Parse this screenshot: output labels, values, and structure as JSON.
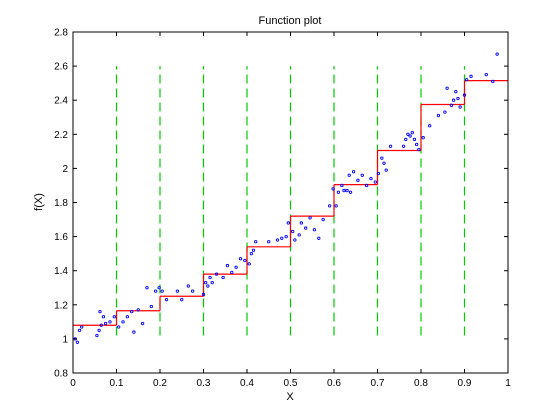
{
  "chart_data": {
    "type": "scatter",
    "title": "Function plot",
    "xlabel": "X",
    "ylabel": "f(X)",
    "xlim": [
      0,
      1
    ],
    "ylim": [
      0.8,
      2.8
    ],
    "x_ticks": [
      0,
      0.1,
      0.2,
      0.3,
      0.4,
      0.5,
      0.6,
      0.7,
      0.8,
      0.9,
      1
    ],
    "x_tick_labels": [
      "0",
      "0.1",
      "0.2",
      "0.3",
      "0.4",
      "0.5",
      "0.6",
      "0.7",
      "0.8",
      "0.9",
      "1"
    ],
    "y_ticks": [
      0.8,
      1,
      1.2,
      1.4,
      1.6,
      1.8,
      2,
      2.2,
      2.4,
      2.6,
      2.8
    ],
    "y_tick_labels": [
      "0.8",
      "1",
      "1.2",
      "1.4",
      "1.6",
      "1.8",
      "2",
      "2.2",
      "2.4",
      "2.6",
      "2.8"
    ],
    "grid": false,
    "colors": {
      "points": "#0000ff",
      "steps": "#ff0000",
      "dividers": "#00cc00"
    },
    "dividers": {
      "x": [
        0.1,
        0.2,
        0.3,
        0.4,
        0.5,
        0.6,
        0.7,
        0.8,
        0.9
      ],
      "y_range": [
        1.02,
        2.6
      ]
    },
    "step_function": {
      "segments": [
        {
          "x0": 0.0,
          "x1": 0.1,
          "y": 1.08
        },
        {
          "x0": 0.1,
          "x1": 0.2,
          "y": 1.165
        },
        {
          "x0": 0.2,
          "x1": 0.3,
          "y": 1.25
        },
        {
          "x0": 0.3,
          "x1": 0.4,
          "y": 1.38
        },
        {
          "x0": 0.4,
          "x1": 0.5,
          "y": 1.54
        },
        {
          "x0": 0.5,
          "x1": 0.6,
          "y": 1.72
        },
        {
          "x0": 0.6,
          "x1": 0.7,
          "y": 1.905
        },
        {
          "x0": 0.7,
          "x1": 0.8,
          "y": 2.105
        },
        {
          "x0": 0.8,
          "x1": 0.9,
          "y": 2.375
        },
        {
          "x0": 0.9,
          "x1": 1.0,
          "y": 2.515
        }
      ]
    },
    "points": [
      [
        0.005,
        1.0
      ],
      [
        0.01,
        0.98
      ],
      [
        0.015,
        1.05
      ],
      [
        0.02,
        1.07
      ],
      [
        0.055,
        1.02
      ],
      [
        0.06,
        1.05
      ],
      [
        0.062,
        1.16
      ],
      [
        0.065,
        1.08
      ],
      [
        0.07,
        1.13
      ],
      [
        0.075,
        1.09
      ],
      [
        0.085,
        1.1
      ],
      [
        0.095,
        1.13
      ],
      [
        0.105,
        1.07
      ],
      [
        0.115,
        1.1
      ],
      [
        0.125,
        1.13
      ],
      [
        0.135,
        1.16
      ],
      [
        0.14,
        1.04
      ],
      [
        0.15,
        1.17
      ],
      [
        0.16,
        1.09
      ],
      [
        0.17,
        1.3
      ],
      [
        0.18,
        1.19
      ],
      [
        0.19,
        1.28
      ],
      [
        0.198,
        1.3
      ],
      [
        0.205,
        1.28
      ],
      [
        0.215,
        1.23
      ],
      [
        0.24,
        1.28
      ],
      [
        0.25,
        1.23
      ],
      [
        0.265,
        1.31
      ],
      [
        0.275,
        1.28
      ],
      [
        0.3,
        1.26
      ],
      [
        0.305,
        1.33
      ],
      [
        0.31,
        1.31
      ],
      [
        0.315,
        1.36
      ],
      [
        0.32,
        1.33
      ],
      [
        0.33,
        1.38
      ],
      [
        0.345,
        1.36
      ],
      [
        0.355,
        1.43
      ],
      [
        0.365,
        1.39
      ],
      [
        0.375,
        1.42
      ],
      [
        0.385,
        1.47
      ],
      [
        0.395,
        1.46
      ],
      [
        0.405,
        1.44
      ],
      [
        0.41,
        1.5
      ],
      [
        0.415,
        1.52
      ],
      [
        0.42,
        1.57
      ],
      [
        0.45,
        1.57
      ],
      [
        0.47,
        1.58
      ],
      [
        0.48,
        1.59
      ],
      [
        0.49,
        1.6
      ],
      [
        0.495,
        1.68
      ],
      [
        0.505,
        1.63
      ],
      [
        0.51,
        1.58
      ],
      [
        0.52,
        1.61
      ],
      [
        0.525,
        1.68
      ],
      [
        0.535,
        1.65
      ],
      [
        0.545,
        1.71
      ],
      [
        0.555,
        1.64
      ],
      [
        0.565,
        1.59
      ],
      [
        0.575,
        1.7
      ],
      [
        0.59,
        1.78
      ],
      [
        0.598,
        1.88
      ],
      [
        0.605,
        1.78
      ],
      [
        0.61,
        1.86
      ],
      [
        0.618,
        1.9
      ],
      [
        0.623,
        1.87
      ],
      [
        0.63,
        1.87
      ],
      [
        0.635,
        1.96
      ],
      [
        0.638,
        1.86
      ],
      [
        0.645,
        1.98
      ],
      [
        0.655,
        1.93
      ],
      [
        0.665,
        1.96
      ],
      [
        0.675,
        1.9
      ],
      [
        0.685,
        1.94
      ],
      [
        0.695,
        1.92
      ],
      [
        0.702,
        1.97
      ],
      [
        0.71,
        2.06
      ],
      [
        0.715,
        2.03
      ],
      [
        0.72,
        1.99
      ],
      [
        0.73,
        2.13
      ],
      [
        0.76,
        2.13
      ],
      [
        0.765,
        2.17
      ],
      [
        0.77,
        2.2
      ],
      [
        0.775,
        2.19
      ],
      [
        0.78,
        2.21
      ],
      [
        0.785,
        2.17
      ],
      [
        0.79,
        2.14
      ],
      [
        0.795,
        2.11
      ],
      [
        0.805,
        2.18
      ],
      [
        0.82,
        2.25
      ],
      [
        0.84,
        2.31
      ],
      [
        0.855,
        2.33
      ],
      [
        0.86,
        2.47
      ],
      [
        0.87,
        2.37
      ],
      [
        0.875,
        2.4
      ],
      [
        0.88,
        2.45
      ],
      [
        0.885,
        2.41
      ],
      [
        0.89,
        2.36
      ],
      [
        0.9,
        2.43
      ],
      [
        0.905,
        2.52
      ],
      [
        0.915,
        2.54
      ],
      [
        0.95,
        2.55
      ],
      [
        0.965,
        2.51
      ],
      [
        0.975,
        2.67
      ]
    ]
  }
}
